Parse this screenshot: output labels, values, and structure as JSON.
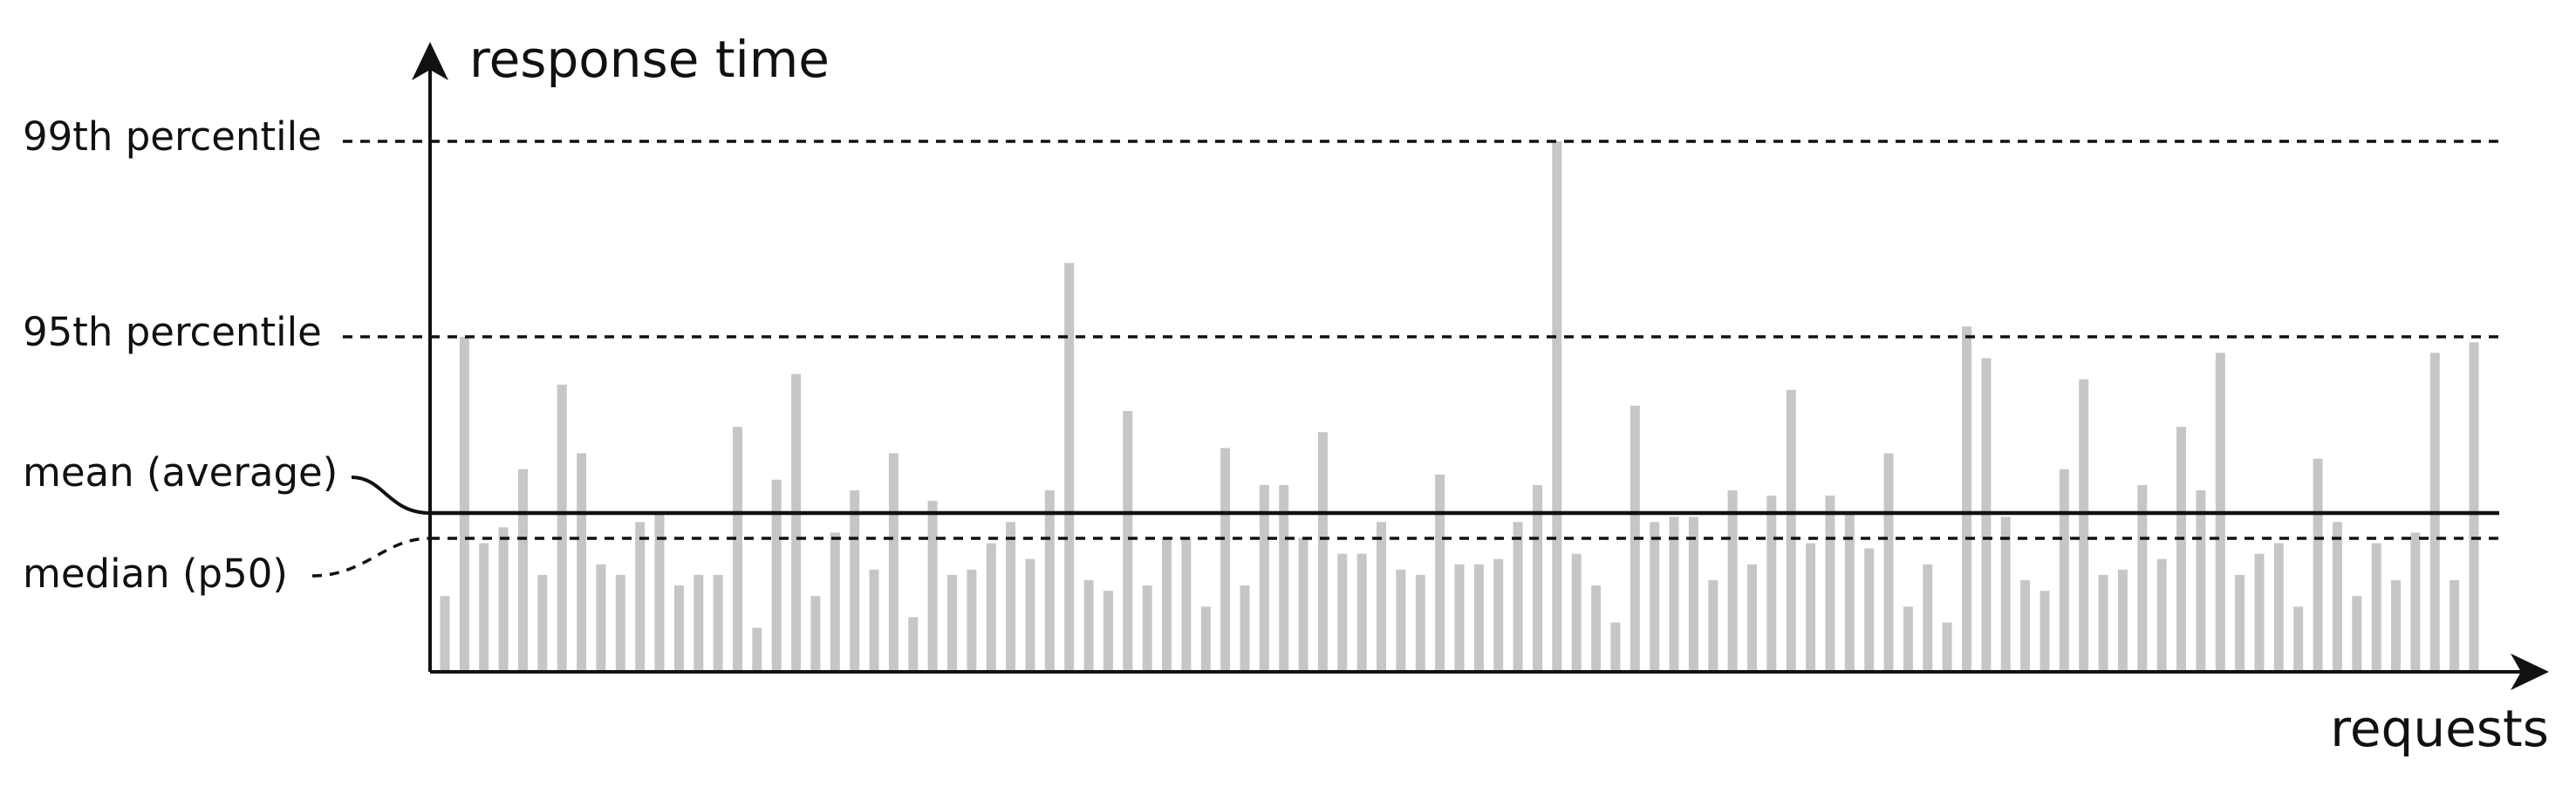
{
  "axes": {
    "y_label": "response time",
    "x_label": "requests"
  },
  "reference_lines": {
    "p99": "99th percentile",
    "p95": "95th percentile",
    "mean": "mean (average)",
    "median": "median (p50)"
  },
  "colors": {
    "bar": "#c6c6c6",
    "axis": "#111111",
    "line": "#111111"
  },
  "chart_data": {
    "type": "bar",
    "x": "requests",
    "y": "response time",
    "reference_levels": {
      "median": 0.25,
      "mean": 0.3,
      "p95": 0.63,
      "p99": 1.0
    },
    "ylim": [
      0,
      1.0
    ],
    "values": [
      0.14,
      0.63,
      0.24,
      0.27,
      0.38,
      0.18,
      0.54,
      0.41,
      0.2,
      0.18,
      0.28,
      0.3,
      0.16,
      0.18,
      0.18,
      0.46,
      0.08,
      0.36,
      0.56,
      0.14,
      0.26,
      0.34,
      0.19,
      0.41,
      0.1,
      0.32,
      0.18,
      0.19,
      0.24,
      0.28,
      0.21,
      0.34,
      0.77,
      0.17,
      0.15,
      0.49,
      0.16,
      0.25,
      0.25,
      0.12,
      0.42,
      0.16,
      0.35,
      0.35,
      0.25,
      0.45,
      0.22,
      0.22,
      0.28,
      0.19,
      0.18,
      0.37,
      0.2,
      0.2,
      0.21,
      0.28,
      0.35,
      1.0,
      0.22,
      0.16,
      0.09,
      0.5,
      0.28,
      0.29,
      0.29,
      0.17,
      0.34,
      0.2,
      0.33,
      0.53,
      0.24,
      0.33,
      0.3,
      0.23,
      0.41,
      0.12,
      0.2,
      0.09,
      0.65,
      0.59,
      0.29,
      0.17,
      0.15,
      0.38,
      0.55,
      0.18,
      0.19,
      0.35,
      0.21,
      0.46,
      0.34,
      0.6,
      0.18,
      0.22,
      0.24,
      0.12,
      0.4,
      0.28,
      0.14,
      0.24,
      0.17,
      0.26,
      0.6,
      0.17,
      0.62
    ]
  }
}
